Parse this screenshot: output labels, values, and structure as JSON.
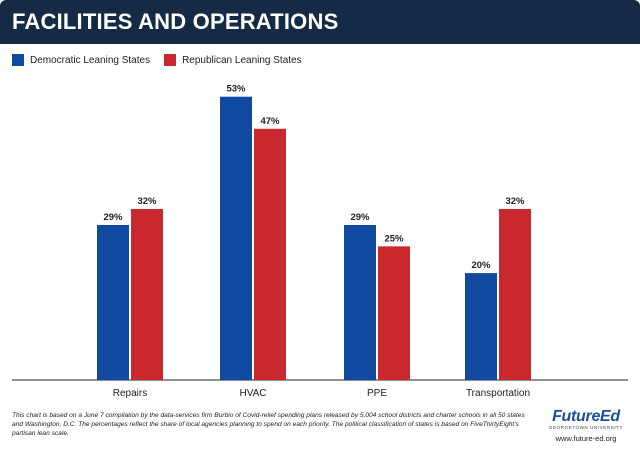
{
  "header": {
    "title": "FACILITIES AND OPERATIONS"
  },
  "legend": {
    "items": [
      {
        "label": "Democratic Leaning States",
        "color": "#0f4aa0"
      },
      {
        "label": "Republican Leaning States",
        "color": "#c8282e"
      }
    ]
  },
  "chart_data": {
    "type": "bar",
    "categories": [
      "Repairs",
      "HVAC",
      "PPE",
      "Transportation"
    ],
    "series": [
      {
        "name": "Democratic Leaning States",
        "values": [
          29,
          53,
          29,
          20
        ],
        "labels": [
          "29%",
          "53%",
          "29%",
          "20%"
        ],
        "color": "#0f4aa0"
      },
      {
        "name": "Republican Leaning States",
        "values": [
          32,
          47,
          25,
          32
        ],
        "labels": [
          "32%",
          "47%",
          "25%",
          "32%"
        ],
        "color": "#c8282e"
      }
    ],
    "ylim": [
      0,
      55
    ],
    "grid": false,
    "legend_position": "top-left"
  },
  "footnote": "This chart is based on a June 7 compilation by the data-services firm Burbio of Covid-relief spending plans released by 5,004 school districts and charter schools in all 50 states and Washington, D.C. The percentages reflect the share of local agencies planning to spend on each priority. The political classification of states is based on FiveThirtyEight's partisan lean scale.",
  "logo": {
    "name": "FutureEd",
    "subtitle": "GEORGETOWN UNIVERSITY",
    "url": "www.future-ed.org"
  }
}
